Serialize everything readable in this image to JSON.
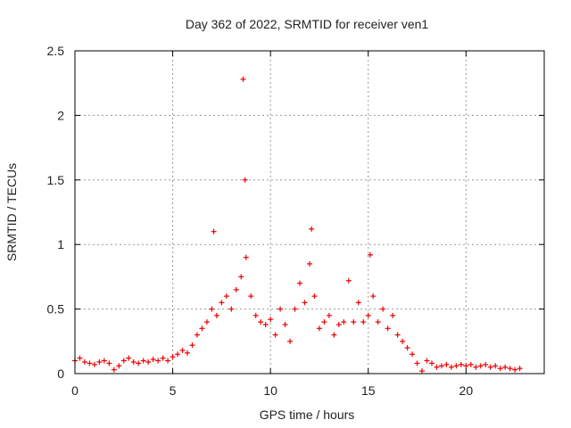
{
  "chart_data": {
    "type": "scatter",
    "title": "Day 362 of 2022, SRMTID for receiver ven1",
    "xlabel": "GPS time / hours",
    "ylabel": "SRMTID / TECUs",
    "xlim": [
      0,
      24
    ],
    "ylim": [
      0,
      2.5
    ],
    "x_ticks": [
      0,
      5,
      10,
      15,
      20
    ],
    "y_ticks": [
      0,
      0.5,
      1,
      1.5,
      2,
      2.5
    ],
    "x_tick_labels": [
      "0",
      "5",
      "10",
      "15",
      "20"
    ],
    "y_tick_labels": [
      "0",
      "0.5",
      "1",
      "1.5",
      "2",
      "2.5"
    ],
    "grid": true,
    "marker": "+",
    "series": [
      {
        "name": "SRMTID",
        "color": "#ee0000",
        "x": [
          0.0,
          0.25,
          0.5,
          0.75,
          1.0,
          1.25,
          1.5,
          1.75,
          2.0,
          2.25,
          2.5,
          2.75,
          3.0,
          3.25,
          3.5,
          3.75,
          4.0,
          4.25,
          4.5,
          4.75,
          5.0,
          5.25,
          5.5,
          5.75,
          6.0,
          6.25,
          6.5,
          6.75,
          7.0,
          7.1,
          7.25,
          7.5,
          7.75,
          8.0,
          8.25,
          8.5,
          8.6,
          8.7,
          8.75,
          9.0,
          9.25,
          9.5,
          9.75,
          10.0,
          10.25,
          10.5,
          10.75,
          11.0,
          11.25,
          11.5,
          11.75,
          12.0,
          12.1,
          12.25,
          12.5,
          12.75,
          13.0,
          13.25,
          13.5,
          13.75,
          14.0,
          14.25,
          14.5,
          14.75,
          15.0,
          15.1,
          15.25,
          15.5,
          15.75,
          16.0,
          16.25,
          16.5,
          16.75,
          17.0,
          17.25,
          17.5,
          17.75,
          18.0,
          18.25,
          18.5,
          18.75,
          19.0,
          19.25,
          19.5,
          19.75,
          20.0,
          20.25,
          20.5,
          20.75,
          21.0,
          21.25,
          21.5,
          21.75,
          22.0,
          22.25,
          22.5,
          22.75
        ],
        "y": [
          0.1,
          0.12,
          0.09,
          0.08,
          0.07,
          0.09,
          0.1,
          0.08,
          0.03,
          0.06,
          0.1,
          0.12,
          0.09,
          0.08,
          0.1,
          0.09,
          0.11,
          0.1,
          0.12,
          0.1,
          0.13,
          0.15,
          0.18,
          0.16,
          0.22,
          0.3,
          0.35,
          0.4,
          0.5,
          1.1,
          0.45,
          0.55,
          0.6,
          0.5,
          0.65,
          0.75,
          2.28,
          1.5,
          0.9,
          0.6,
          0.45,
          0.4,
          0.38,
          0.42,
          0.3,
          0.5,
          0.38,
          0.25,
          0.5,
          0.7,
          0.55,
          0.85,
          1.12,
          0.6,
          0.35,
          0.4,
          0.45,
          0.3,
          0.38,
          0.4,
          0.72,
          0.4,
          0.55,
          0.4,
          0.45,
          0.92,
          0.6,
          0.4,
          0.5,
          0.35,
          0.45,
          0.3,
          0.25,
          0.2,
          0.15,
          0.08,
          0.02,
          0.1,
          0.08,
          0.05,
          0.06,
          0.07,
          0.05,
          0.06,
          0.07,
          0.06,
          0.07,
          0.05,
          0.06,
          0.07,
          0.05,
          0.06,
          0.04,
          0.05,
          0.04,
          0.03,
          0.04
        ]
      }
    ]
  }
}
